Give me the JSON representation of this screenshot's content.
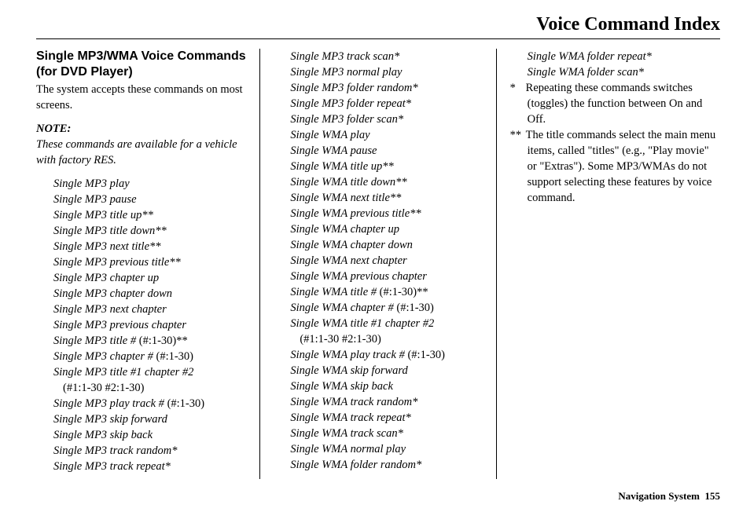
{
  "page": {
    "title": "Voice Command Index",
    "section_heading": "Single MP3/WMA Voice Commands (for DVD Player)",
    "intro": "The system accepts these commands on most screens.",
    "note_label": "NOTE:",
    "note_body": "These commands are available for a vehicle with factory RES.",
    "footer_label": "Navigation System",
    "footer_page": "155"
  },
  "commands": [
    {
      "text": "Single MP3 play"
    },
    {
      "text": "Single MP3 pause"
    },
    {
      "text": "Single MP3 title up**"
    },
    {
      "text": "Single MP3 title down**"
    },
    {
      "text": "Single MP3 next title**"
    },
    {
      "text": "Single MP3 previous title**"
    },
    {
      "text": "Single MP3 chapter up"
    },
    {
      "text": "Single MP3 chapter down"
    },
    {
      "text": "Single MP3 next chapter"
    },
    {
      "text": "Single MP3 previous chapter"
    },
    {
      "text": "Single MP3 title #",
      "paren": "(#:1-30)**"
    },
    {
      "text": "Single MP3 chapter #",
      "paren": "(#:1-30)"
    },
    {
      "text": "Single MP3 title #1 chapter #2",
      "paren": "(#1:1-30 #2:1-30)"
    },
    {
      "text": "Single MP3 play track #",
      "paren": "(#:1-30)"
    },
    {
      "text": "Single MP3 skip forward"
    },
    {
      "text": "Single MP3 skip back"
    },
    {
      "text": "Single MP3 track random*"
    },
    {
      "text": "Single MP3 track repeat*"
    },
    {
      "text": "Single MP3 track scan*"
    },
    {
      "text": "Single MP3 normal play"
    },
    {
      "text": "Single MP3 folder random*"
    },
    {
      "text": "Single MP3 folder repeat*"
    },
    {
      "text": "Single MP3 folder scan*"
    },
    {
      "text": "Single WMA play"
    },
    {
      "text": "Single WMA pause"
    },
    {
      "text": "Single WMA title up**"
    },
    {
      "text": "Single WMA title down**"
    },
    {
      "text": "Single WMA next title**"
    },
    {
      "text": "Single WMA previous title**"
    },
    {
      "text": "Single WMA chapter up"
    },
    {
      "text": "Single WMA chapter down"
    },
    {
      "text": "Single WMA next chapter"
    },
    {
      "text": "Single WMA previous chapter"
    },
    {
      "text": "Single WMA title #",
      "paren": "(#:1-30)**"
    },
    {
      "text": "Single WMA chapter #",
      "paren": "(#:1-30)"
    },
    {
      "text": "Single WMA title #1 chapter #2",
      "paren": "(#1:1-30 #2:1-30)"
    },
    {
      "text": "Single WMA play track #",
      "paren": "(#:1-30)"
    },
    {
      "text": "Single WMA skip forward"
    },
    {
      "text": "Single WMA skip back"
    },
    {
      "text": "Single WMA track random*"
    },
    {
      "text": "Single WMA track repeat*"
    },
    {
      "text": "Single WMA track scan*"
    },
    {
      "text": "Single WMA normal play"
    },
    {
      "text": "Single WMA folder random*"
    },
    {
      "text": "Single WMA folder repeat*"
    },
    {
      "text": "Single WMA folder scan*"
    }
  ],
  "footnotes": [
    {
      "marker": "*",
      "text": "Repeating these commands switches (toggles) the function between On and Off."
    },
    {
      "marker": "**",
      "text": "The title commands select the main menu items, called \"titles\" (e.g., \"Play movie\" or \"Extras\"). Some MP3/WMAs do not support selecting these features by voice command."
    }
  ]
}
